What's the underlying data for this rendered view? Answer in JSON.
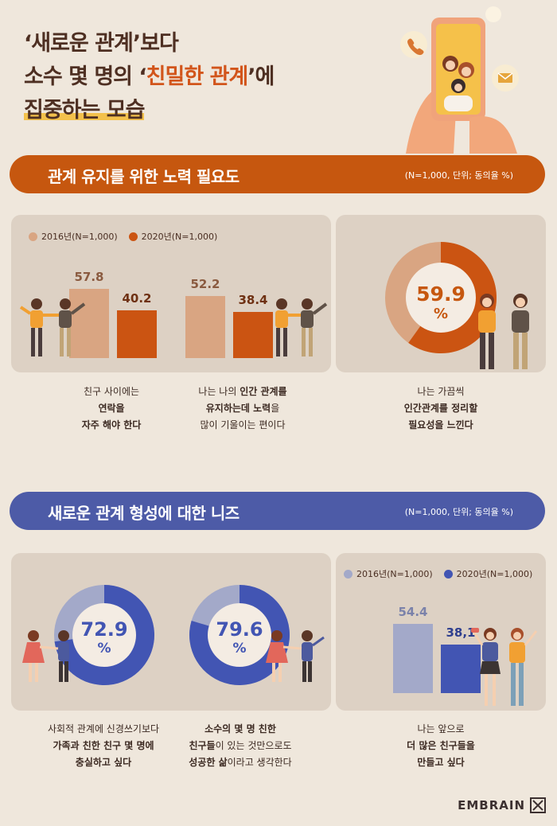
{
  "header": {
    "title_line1": "‘새로운 관계’보다",
    "title_line2_pre": "소수 몇 명의 ‘",
    "title_line2_hl": "친밀한 관계",
    "title_line2_post": "’에",
    "title_line3": "집중하는 모습"
  },
  "section1": {
    "title": "관계 유지를 위한 노력 필요도",
    "note": "(N=1,000, 단위; 동의율 %)",
    "legend": {
      "s2016": "2016년(N=1,000)",
      "s2020": "2020년(N=1,000)"
    },
    "colors": {
      "s2016": "#d9a582",
      "s2020": "#cb5412"
    },
    "chart_data": {
      "type": "bar",
      "categories": [
        "친구 사이에는 연락을 자주 해야 한다",
        "나는 나의 인간 관계를 유지하는데 노력을 많이 기울이는 편이다"
      ],
      "series": [
        {
          "name": "2016년(N=1,000)",
          "values": [
            57.8,
            52.2
          ]
        },
        {
          "name": "2020년(N=1,000)",
          "values": [
            40.2,
            38.4
          ]
        }
      ],
      "labels": {
        "g1_2016": "57.8",
        "g1_2020": "40.2",
        "g2_2016": "52.2",
        "g2_2020": "38.4"
      }
    },
    "donut": {
      "value": 59.9,
      "label": "59.9",
      "unit": "%"
    },
    "captions": {
      "c1_l1": "친구 사이에는",
      "c1_l2": "연락을",
      "c1_l3": "자주 해야 한다",
      "c2_l1a": "나는 나의 ",
      "c2_l1b": "인간 관계를",
      "c2_l2a": "유지하는데 노력",
      "c2_l2b": "을",
      "c2_l3": "많이 기울이는 편이다",
      "c3_l1": "나는 가끔씩",
      "c3_l2": "인간관계를 정리할",
      "c3_l3": "필요성을 느낀다"
    }
  },
  "section2": {
    "title": "새로운 관계 형성에 대한 니즈",
    "note": "(N=1,000, 단위; 동의율 %)",
    "donut1": {
      "value": 72.9,
      "label": "72.9",
      "unit": "%"
    },
    "donut2": {
      "value": 79.6,
      "label": "79.6",
      "unit": "%"
    },
    "legend": {
      "s2016": "2016년(N=1,000)",
      "s2020": "2020년(N=1,000)"
    },
    "colors": {
      "s2016": "#a3a9c9",
      "s2020": "#4255b3"
    },
    "chart_data": {
      "type": "bar",
      "categories": [
        "나는 앞으로 더 많은 친구들을 만들고 싶다"
      ],
      "series": [
        {
          "name": "2016년(N=1,000)",
          "values": [
            54.4
          ]
        },
        {
          "name": "2020년(N=1,000)",
          "values": [
            38.1
          ]
        }
      ],
      "labels": {
        "v2016": "54.4",
        "v2020": "38,1"
      }
    },
    "captions": {
      "c1_l1": "사회적 관계에 신경쓰기보다",
      "c1_l2": "가족과 친한 친구 몇 명에",
      "c1_l3": "충실하고 싶다",
      "c2_l1": "소수의 몇 명 친한",
      "c2_l2a": "친구들",
      "c2_l2b": "이 있는 것만으로도",
      "c2_l3a": "성공한 삶",
      "c2_l3b": "이라고 생각한다",
      "c3_l1": "나는 앞으로",
      "c3_l2": "더 많은 친구들을",
      "c3_l3": "만들고 싶다"
    }
  },
  "brand": {
    "name": "EMBRAIN"
  }
}
